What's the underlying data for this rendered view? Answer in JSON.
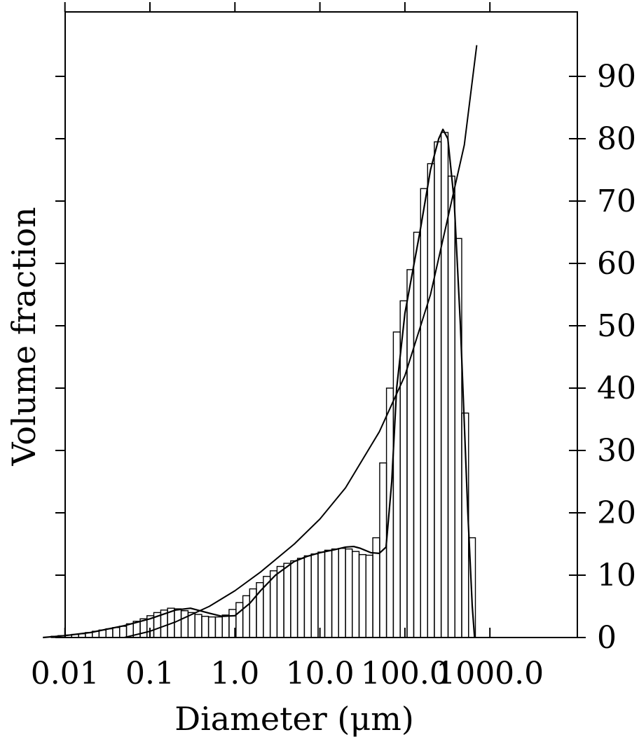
{
  "chart_data": {
    "type": "bar",
    "title": "",
    "xlabel": "Diameter (μm)",
    "ylabel": "Volume fraction",
    "x_scale": "log",
    "xlim": [
      0.005,
      1000
    ],
    "ylim": [
      0,
      100
    ],
    "x_tick_values": [
      0.01,
      0.1,
      1.0,
      10.0,
      100.0,
      1000.0
    ],
    "x_tick_labels": [
      "0.01",
      "0.1",
      "1.0",
      "10.0",
      "100.0",
      "1000.0"
    ],
    "y_tick_values": [
      0,
      10,
      20,
      30,
      40,
      50,
      60,
      70,
      80,
      90
    ],
    "y_tick_labels": [
      "0",
      "10",
      "20",
      "30",
      "40",
      "50",
      "60",
      "70",
      "80",
      "90"
    ],
    "y_tick_side": "right",
    "grid": false,
    "legend": "none",
    "histogram": {
      "bin_edges": [
        0.0069,
        0.0083,
        0.01,
        0.012,
        0.0145,
        0.0174,
        0.021,
        0.0252,
        0.0304,
        0.0365,
        0.044,
        0.053,
        0.0637,
        0.0767,
        0.0923,
        0.111,
        0.134,
        0.161,
        0.194,
        0.233,
        0.281,
        0.338,
        0.407,
        0.489,
        0.589,
        0.709,
        0.853,
        1.03,
        1.24,
        1.49,
        1.79,
        2.16,
        2.6,
        3.13,
        3.76,
        4.53,
        5.45,
        6.56,
        7.9,
        9.51,
        11.4,
        13.8,
        16.6,
        20.0,
        24.0,
        28.9,
        34.8,
        41.9,
        50.5,
        60.7,
        73.1,
        88.0,
        106,
        127,
        153,
        185,
        222,
        267,
        322,
        387,
        466,
        561,
        675
      ],
      "values": [
        0.2,
        0.3,
        0.4,
        0.5,
        0.6,
        0.8,
        1.0,
        1.2,
        1.4,
        1.6,
        1.8,
        2.2,
        2.6,
        3.0,
        3.5,
        4.0,
        4.4,
        4.7,
        4.6,
        4.3,
        4.0,
        3.7,
        3.4,
        3.3,
        3.3,
        3.6,
        4.5,
        5.6,
        6.7,
        7.8,
        8.8,
        9.8,
        10.7,
        11.4,
        11.9,
        12.3,
        12.7,
        13.1,
        13.4,
        13.7,
        14.0,
        14.2,
        14.3,
        14.2,
        13.8,
        13.3,
        13.2,
        16.0,
        28.0,
        40.0,
        49.0,
        54.0,
        59.0,
        65.0,
        72.0,
        76.0,
        79.5,
        81.0,
        74.0,
        64.0,
        36.0,
        16.0,
        1.5
      ]
    },
    "series": [
      {
        "type": "area",
        "x": [
          0.0055,
          0.01,
          0.02,
          0.05,
          0.1,
          0.2,
          0.3,
          0.5,
          0.7,
          1.0,
          1.5,
          2.0,
          3.0,
          5.0,
          7.0,
          10.0,
          15.0,
          20.0,
          25.0,
          30.0,
          40.0,
          50.0,
          60.0,
          70.0,
          80.0,
          100.0,
          150.0,
          200.0,
          250.0,
          280.0,
          320.0,
          380.0,
          450.0,
          550.0,
          620.0,
          660.0
        ],
        "y": [
          0,
          0.3,
          0.8,
          1.9,
          3.0,
          4.4,
          4.7,
          3.9,
          3.4,
          3.5,
          5.5,
          7.5,
          10.0,
          12.2,
          13.0,
          13.6,
          14.1,
          14.5,
          14.6,
          14.3,
          13.6,
          13.5,
          14.5,
          25.0,
          40.0,
          52.0,
          65.0,
          75.0,
          80.0,
          81.5,
          80.0,
          70.0,
          50.0,
          20.0,
          5.0,
          0
        ]
      },
      {
        "type": "line",
        "x": [
          0.05,
          0.1,
          0.2,
          0.5,
          1.0,
          2.0,
          5.0,
          10.0,
          20.0,
          50.0,
          100.0,
          200.0,
          500.0,
          700.0
        ],
        "y": [
          0,
          1.0,
          2.5,
          5.0,
          7.5,
          10.5,
          15.0,
          19.0,
          24.0,
          33.0,
          42.0,
          55.0,
          79.0,
          95.0
        ]
      }
    ]
  }
}
